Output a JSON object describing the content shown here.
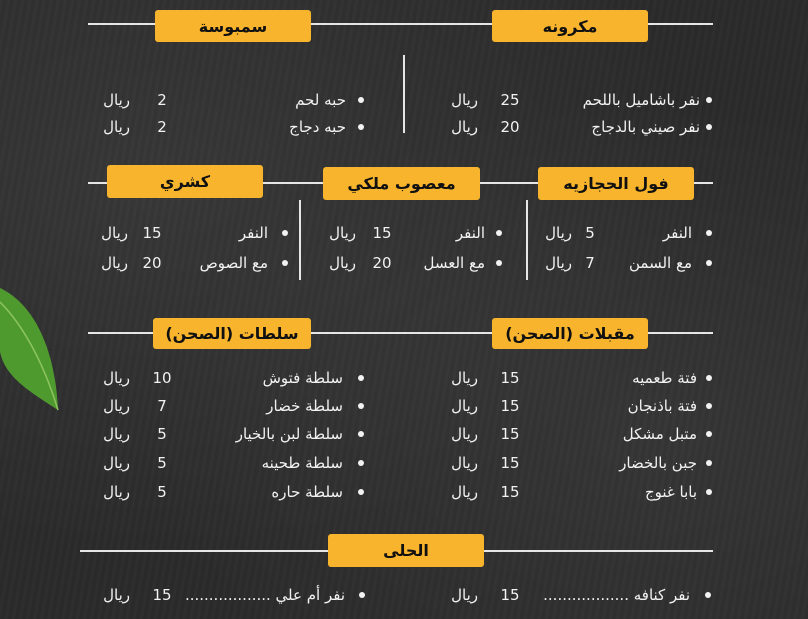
{
  "colors": {
    "badge": "#f7b42c",
    "background": "#2b2b2b",
    "text": "#f2f2f2",
    "leaf": "#4f9a2e"
  },
  "decor_icon": "leaf-icon",
  "sections": [
    {
      "title": "مكرونه",
      "items": [
        {
          "name": "نفر باشاميل باللحم",
          "price": "25",
          "currency": "ريال"
        },
        {
          "name": "نفر صيني بالدجاج",
          "price": "20",
          "currency": "ريال"
        }
      ]
    },
    {
      "title": "سمبوسة",
      "items": [
        {
          "name": "حبه لحم",
          "price": "2",
          "currency": "ريال"
        },
        {
          "name": "حبه دجاج",
          "price": "2",
          "currency": "ريال"
        }
      ]
    },
    {
      "title": "فول الحجازيه",
      "items": [
        {
          "name": "النفر",
          "price": "5",
          "currency": "ريال"
        },
        {
          "name": "مع السمن",
          "price": "7",
          "currency": "ريال"
        }
      ]
    },
    {
      "title": "معصوب ملكي",
      "items": [
        {
          "name": "النفر",
          "price": "15",
          "currency": "ريال"
        },
        {
          "name": "مع العسل",
          "price": "20",
          "currency": "ريال"
        }
      ]
    },
    {
      "title": "كشري",
      "items": [
        {
          "name": "النفر",
          "price": "15",
          "currency": "ريال"
        },
        {
          "name": "مع الصوص",
          "price": "20",
          "currency": "ريال"
        }
      ]
    },
    {
      "title": "مقبلات (الصحن)",
      "items": [
        {
          "name": "فتة طعميه",
          "price": "15",
          "currency": "ريال"
        },
        {
          "name": "فتة باذنجان",
          "price": "15",
          "currency": "ريال"
        },
        {
          "name": "متبل مشكل",
          "price": "15",
          "currency": "ريال"
        },
        {
          "name": "جبن بالخضار",
          "price": "15",
          "currency": "ريال"
        },
        {
          "name": "بابا غنوج",
          "price": "15",
          "currency": "ريال"
        }
      ]
    },
    {
      "title": "سلطات (الصحن)",
      "items": [
        {
          "name": "سلطة فتوش",
          "price": "10",
          "currency": "ريال"
        },
        {
          "name": "سلطة خضار",
          "price": "7",
          "currency": "ريال"
        },
        {
          "name": "سلطة لبن بالخيار",
          "price": "5",
          "currency": "ريال"
        },
        {
          "name": "سلطة طحينه",
          "price": "5",
          "currency": "ريال"
        },
        {
          "name": "سلطة حاره",
          "price": "5",
          "currency": "ريال"
        }
      ]
    },
    {
      "title": "الحلى",
      "items": [
        {
          "name": "نفر كنافه ..................",
          "price": "15",
          "currency": "ريال"
        },
        {
          "name": "نفر أم علي ..................",
          "price": "15",
          "currency": "ريال"
        }
      ]
    }
  ]
}
